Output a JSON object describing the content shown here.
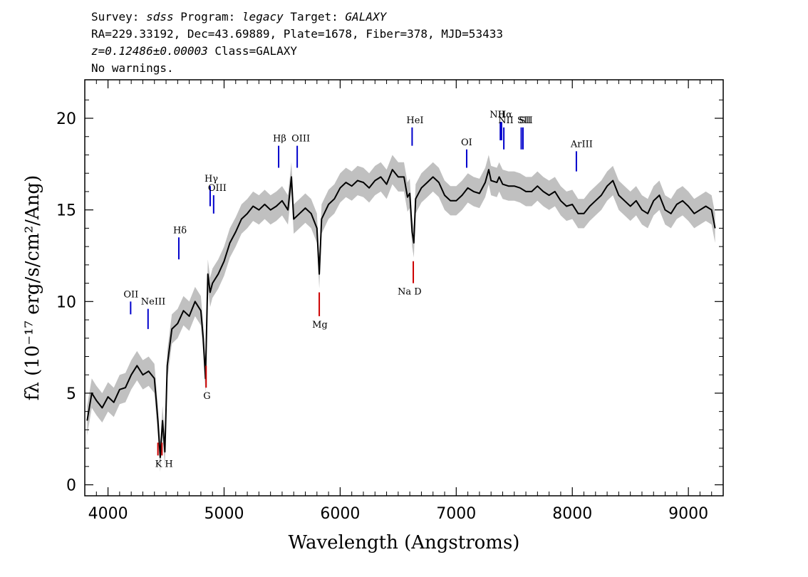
{
  "header": {
    "line1": {
      "p1": "Survey: ",
      "survey": "sdss",
      "p2": " Program: ",
      "program": "legacy",
      "p3": " Target: ",
      "target": "GALAXY"
    },
    "line2": "RA=229.33192, Dec=43.69889, Plate=1678, Fiber=378, MJD=53433",
    "line3": {
      "z": "z=0.12486±0.00003",
      "cls": " Class=GALAXY"
    },
    "line4": "No warnings."
  },
  "chart_data": {
    "type": "line",
    "xlabel": "Wavelength (Angstroms)",
    "ylabel": "fλ (10⁻¹⁷ erg/s/cm²/Ang)",
    "xlim": [
      3800,
      9300
    ],
    "ylim": [
      -0.6,
      22.1
    ],
    "x_ticks": [
      4000,
      5000,
      6000,
      7000,
      8000,
      9000
    ],
    "y_ticks": [
      0,
      5,
      10,
      15,
      20
    ],
    "grid": false,
    "colors": {
      "spectrum": "#000000",
      "error": "#c0c0c0",
      "emission": "#0000cc",
      "absorption": "#cc0000"
    },
    "series": [
      {
        "x": [
          3820,
          3860,
          3900,
          3950,
          4000,
          4050,
          4100,
          4150,
          4200,
          4250,
          4300,
          4350,
          4400,
          4430,
          4450,
          4470,
          4490,
          4510,
          4550,
          4600,
          4650,
          4700,
          4750,
          4800,
          4820,
          4840,
          4860,
          4880,
          4900,
          4950,
          5000,
          5050,
          5100,
          5150,
          5200,
          5250,
          5300,
          5350,
          5400,
          5450,
          5500,
          5550,
          5580,
          5600,
          5650,
          5700,
          5750,
          5800,
          5820,
          5840,
          5900,
          5950,
          6000,
          6050,
          6100,
          6150,
          6200,
          6250,
          6300,
          6350,
          6400,
          6450,
          6500,
          6550,
          6580,
          6600,
          6620,
          6635,
          6650,
          6700,
          6750,
          6800,
          6850,
          6900,
          6950,
          7000,
          7050,
          7100,
          7150,
          7200,
          7250,
          7280,
          7300,
          7350,
          7370,
          7400,
          7450,
          7500,
          7550,
          7600,
          7650,
          7700,
          7750,
          7800,
          7850,
          7900,
          7950,
          8000,
          8050,
          8100,
          8150,
          8200,
          8250,
          8300,
          8350,
          8400,
          8450,
          8500,
          8550,
          8600,
          8650,
          8700,
          8750,
          8800,
          8850,
          8900,
          8950,
          9000,
          9050,
          9100,
          9150,
          9200,
          9230
        ],
        "y": [
          3.5,
          5.0,
          4.6,
          4.2,
          4.8,
          4.5,
          5.2,
          5.3,
          6.0,
          6.5,
          6.0,
          6.2,
          5.8,
          3.5,
          1.5,
          3.5,
          1.8,
          6.5,
          8.5,
          8.8,
          9.5,
          9.2,
          10.0,
          9.5,
          8.0,
          5.8,
          11.5,
          10.5,
          11.0,
          11.5,
          12.2,
          13.2,
          13.8,
          14.5,
          14.8,
          15.2,
          15.0,
          15.3,
          15.0,
          15.2,
          15.5,
          15.0,
          16.8,
          14.5,
          14.8,
          15.1,
          14.8,
          14.0,
          11.5,
          14.5,
          15.3,
          15.6,
          16.2,
          16.5,
          16.3,
          16.6,
          16.5,
          16.2,
          16.6,
          16.8,
          16.4,
          17.2,
          16.8,
          16.8,
          15.7,
          15.9,
          13.8,
          13.2,
          15.6,
          16.2,
          16.5,
          16.8,
          16.5,
          15.8,
          15.5,
          15.5,
          15.8,
          16.2,
          16.0,
          15.9,
          16.5,
          17.2,
          16.6,
          16.5,
          16.8,
          16.4,
          16.3,
          16.3,
          16.2,
          16.0,
          16.0,
          16.3,
          16.0,
          15.8,
          16.0,
          15.5,
          15.2,
          15.3,
          14.8,
          14.8,
          15.2,
          15.5,
          15.8,
          16.3,
          16.6,
          15.8,
          15.5,
          15.2,
          15.5,
          15.0,
          14.8,
          15.5,
          15.8,
          15.0,
          14.8,
          15.3,
          15.5,
          15.2,
          14.8,
          15.0,
          15.2,
          15.0,
          14.0
        ]
      }
    ],
    "emission_lines": [
      {
        "label": "OII",
        "x": 4195,
        "y1": 9.3,
        "y2": 10.0
      },
      {
        "label": "NeIII",
        "x": 4345,
        "y1": 8.5,
        "y2": 9.6
      },
      {
        "label": "Hδ",
        "x": 4610,
        "y1": 12.3,
        "y2": 13.5
      },
      {
        "label": "Hγ",
        "x": 4880,
        "y1": 15.2,
        "y2": 16.3
      },
      {
        "label": "OIII",
        "x": 4910,
        "y1": 14.8,
        "y2": 15.8
      },
      {
        "label": "Hβ",
        "x": 5470,
        "y1": 17.3,
        "y2": 18.5
      },
      {
        "label": "OIII",
        "x": 5630,
        "y1": 17.3,
        "y2": 18.5
      },
      {
        "label": "HeI",
        "x": 6620,
        "y1": 18.5,
        "y2": 19.5
      },
      {
        "label": "OI",
        "x": 7090,
        "y1": 17.3,
        "y2": 18.3
      },
      {
        "label": "NII",
        "x": 7380,
        "y1": 18.8,
        "y2": 19.8
      },
      {
        "label": "Hα",
        "x": 7390,
        "y1": 18.8,
        "y2": 19.8
      },
      {
        "label": "NII",
        "x": 7410,
        "y1": 18.3,
        "y2": 19.5
      },
      {
        "label": "SII",
        "x": 7560,
        "y1": 18.3,
        "y2": 19.5
      },
      {
        "label": "SII",
        "x": 7575,
        "y1": 18.3,
        "y2": 19.5
      },
      {
        "label": "ArIII",
        "x": 8035,
        "y1": 17.1,
        "y2": 18.2
      }
    ],
    "absorption_lines": [
      {
        "label": "K",
        "x": 4430,
        "y1": 1.6,
        "y2": 2.3
      },
      {
        "label": "H",
        "x": 4465,
        "y1": 1.6,
        "y2": 2.3
      },
      {
        "label": "G",
        "x": 4845,
        "y1": 5.3,
        "y2": 6.5
      },
      {
        "label": "Mg",
        "x": 5820,
        "y1": 9.2,
        "y2": 10.5
      },
      {
        "label": "Na D",
        "x": 6630,
        "y1": 11.0,
        "y2": 12.2
      }
    ]
  }
}
